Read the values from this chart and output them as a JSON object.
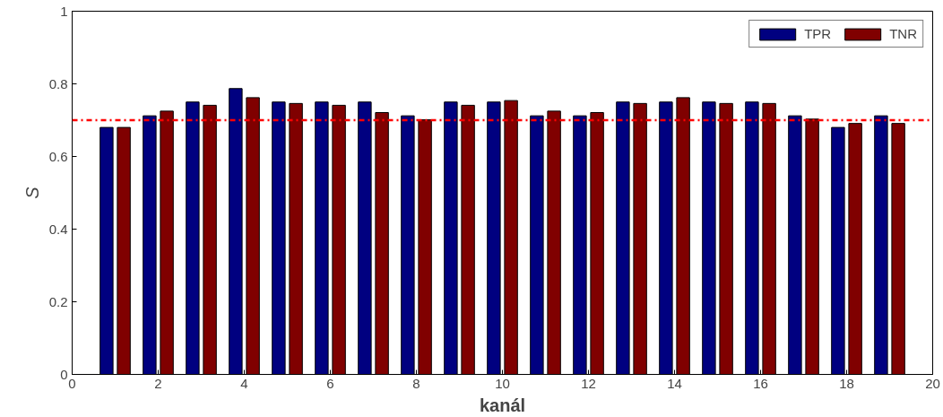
{
  "chart_data": {
    "type": "bar",
    "xlabel": "kanál",
    "ylabel": "S",
    "x": [
      1,
      2,
      3,
      4,
      5,
      6,
      7,
      8,
      9,
      10,
      11,
      12,
      13,
      14,
      15,
      16,
      17,
      18,
      19
    ],
    "series": [
      {
        "name": "TPR",
        "color": "#000080",
        "values": [
          0.68,
          0.712,
          0.75,
          0.787,
          0.75,
          0.75,
          0.75,
          0.712,
          0.75,
          0.75,
          0.712,
          0.712,
          0.75,
          0.75,
          0.75,
          0.75,
          0.712,
          0.68,
          0.712
        ]
      },
      {
        "name": "TNR",
        "color": "#800000",
        "values": [
          0.68,
          0.725,
          0.741,
          0.762,
          0.746,
          0.741,
          0.721,
          0.701,
          0.741,
          0.754,
          0.725,
          0.721,
          0.746,
          0.762,
          0.746,
          0.746,
          0.703,
          0.691,
          0.691
        ]
      }
    ],
    "xlim": [
      0,
      20
    ],
    "xticks": [
      0,
      2,
      4,
      6,
      8,
      10,
      12,
      14,
      16,
      18,
      20
    ],
    "ylim": [
      0,
      1
    ],
    "yticks": [
      0,
      0.2,
      0.4,
      0.6,
      0.8,
      1
    ],
    "ref_lines": [
      {
        "axis": "y",
        "value": 0.7,
        "color": "#ff0000",
        "line_style": "dashdot"
      }
    ],
    "grid": false,
    "legend": "top right"
  }
}
